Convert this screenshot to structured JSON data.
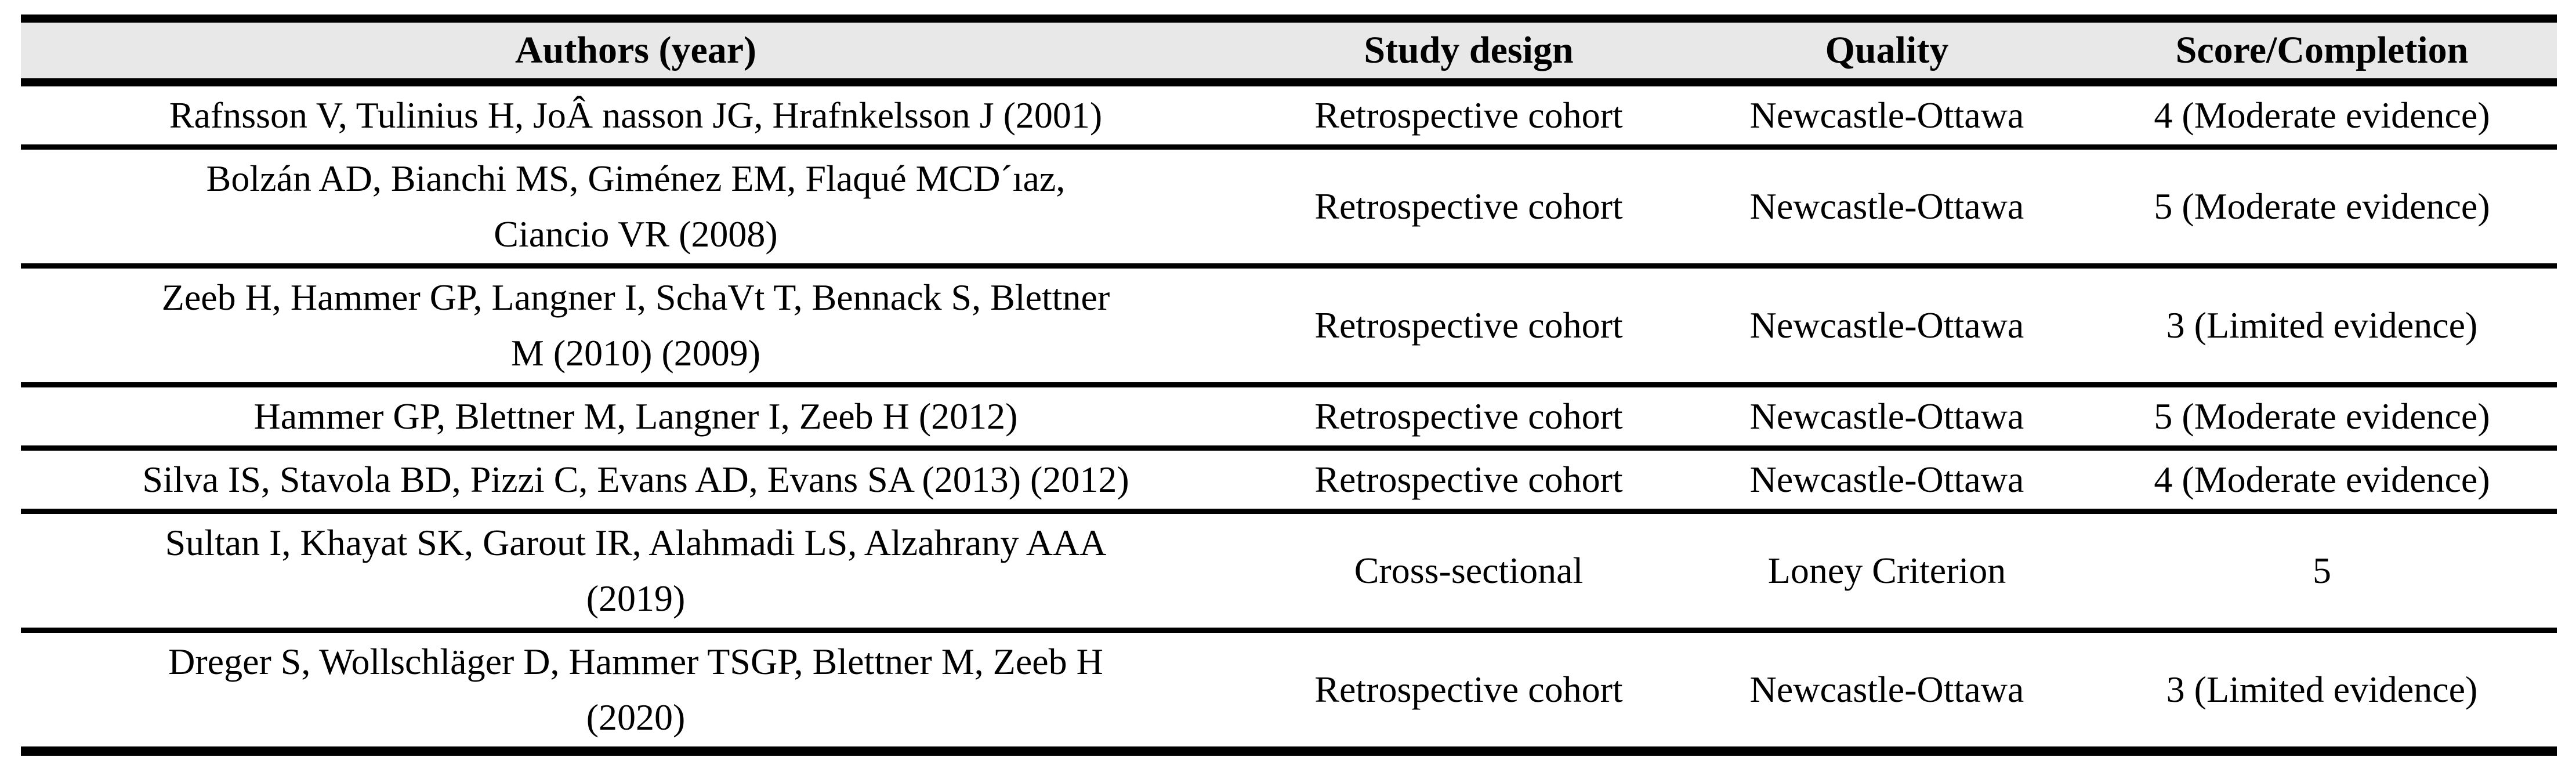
{
  "table": {
    "columns": [
      {
        "label": "Authors (year)"
      },
      {
        "label": "Study design"
      },
      {
        "label": "Quality"
      },
      {
        "label": "Score/Completion"
      }
    ],
    "rows": [
      {
        "authors": [
          "Rafnsson V, Tulinius H, JoÂ nasson JG, Hrafnkelsson J (2001)"
        ],
        "study_design": "Retrospective cohort",
        "quality": "Newcastle-Ottawa",
        "score_completion": "4 (Moderate evidence)"
      },
      {
        "authors": [
          "Bolzán AD, Bianchi MS, Giménez EM, Flaqué MCD´ıaz,",
          "Ciancio VR (2008)"
        ],
        "study_design": "Retrospective cohort",
        "quality": "Newcastle-Ottawa",
        "score_completion": "5 (Moderate evidence)"
      },
      {
        "authors": [
          "Zeeb H, Hammer GP, Langner I, SchaVt T, Bennack S, Blettner",
          "M (2010) (2009)"
        ],
        "study_design": "Retrospective cohort",
        "quality": "Newcastle-Ottawa",
        "score_completion": "3 (Limited evidence)"
      },
      {
        "authors": [
          "Hammer GP, Blettner M, Langner I, Zeeb H (2012)"
        ],
        "study_design": "Retrospective cohort",
        "quality": "Newcastle-Ottawa",
        "score_completion": "5 (Moderate evidence)"
      },
      {
        "authors": [
          "Silva IS, Stavola BD, Pizzi C, Evans AD, Evans SA (2013) (2012)"
        ],
        "study_design": "Retrospective cohort",
        "quality": "Newcastle-Ottawa",
        "score_completion": "4 (Moderate evidence)"
      },
      {
        "authors": [
          "Sultan I, Khayat SK, Garout IR, Alahmadi LS, Alzahrany AAA",
          "(2019)"
        ],
        "study_design": "Cross-sectional",
        "quality": "Loney Criterion",
        "score_completion": "5"
      },
      {
        "authors": [
          "Dreger S, Wollschläger D, Hammer TSGP, Blettner M, Zeeb H",
          "(2020)"
        ],
        "study_design": "Retrospective cohort",
        "quality": "Newcastle-Ottawa",
        "score_completion": "3 (Limited evidence)"
      }
    ],
    "colors": {
      "header_bg": "#e8e8e8",
      "border": "#000000",
      "text": "#000000"
    }
  }
}
